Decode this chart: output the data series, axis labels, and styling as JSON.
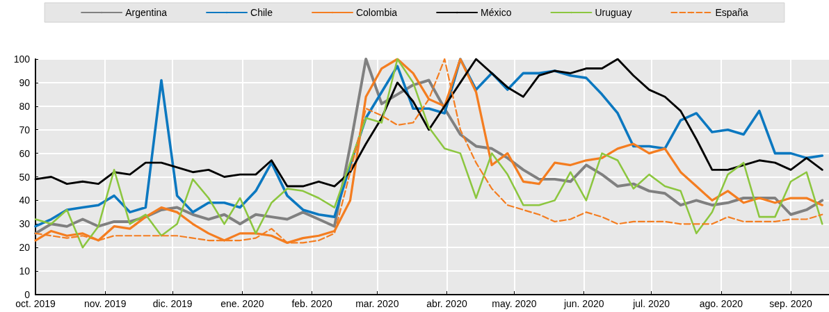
{
  "chart_data": {
    "type": "line",
    "x": [
      "2019-10-01",
      "2019-10-08",
      "2019-10-15",
      "2019-10-22",
      "2019-10-29",
      "2019-11-05",
      "2019-11-12",
      "2019-11-19",
      "2019-11-26",
      "2019-12-03",
      "2019-12-10",
      "2019-12-17",
      "2019-12-24",
      "2019-12-31",
      "2020-01-07",
      "2020-01-14",
      "2020-01-21",
      "2020-01-28",
      "2020-02-04",
      "2020-02-11",
      "2020-02-18",
      "2020-02-25",
      "2020-03-03",
      "2020-03-10",
      "2020-03-17",
      "2020-03-24",
      "2020-03-31",
      "2020-04-07",
      "2020-04-14",
      "2020-04-21",
      "2020-04-28",
      "2020-05-05",
      "2020-05-12",
      "2020-05-19",
      "2020-05-26",
      "2020-06-02",
      "2020-06-09",
      "2020-06-16",
      "2020-06-23",
      "2020-06-30",
      "2020-07-07",
      "2020-07-14",
      "2020-07-21",
      "2020-07-28",
      "2020-08-04",
      "2020-08-11",
      "2020-08-18",
      "2020-08-25",
      "2020-09-01",
      "2020-09-08",
      "2020-09-15"
    ],
    "series": [
      {
        "name": "Argentina",
        "color": "#808080",
        "values": [
          26,
          30,
          29,
          32,
          29,
          31,
          31,
          33,
          36,
          37,
          34,
          32,
          34,
          30,
          34,
          33,
          32,
          35,
          32,
          29,
          63,
          100,
          81,
          85,
          89,
          91,
          79,
          68,
          63,
          62,
          58,
          53,
          49,
          49,
          48,
          55,
          51,
          46,
          47,
          44,
          43,
          38,
          40,
          38,
          39,
          41,
          41,
          41,
          34,
          36,
          40
        ]
      },
      {
        "name": "Chile",
        "color": "#0c78c0",
        "values": [
          29,
          32,
          36,
          37,
          38,
          42,
          35,
          37,
          91,
          42,
          35,
          39,
          39,
          37,
          44,
          56,
          42,
          36,
          34,
          33,
          55,
          75,
          86,
          97,
          79,
          79,
          77,
          100,
          87,
          94,
          87,
          94,
          94,
          95,
          93,
          92,
          85,
          77,
          63,
          63,
          62,
          74,
          77,
          69,
          70,
          68,
          78,
          60,
          60,
          58,
          59
        ]
      },
      {
        "name": "Colombia",
        "color": "#f47d20",
        "values": [
          23,
          27,
          25,
          26,
          23,
          29,
          28,
          33,
          37,
          35,
          30,
          26,
          23,
          26,
          26,
          25,
          22,
          24,
          25,
          27,
          40,
          84,
          96,
          100,
          94,
          83,
          80,
          100,
          86,
          55,
          60,
          48,
          47,
          56,
          55,
          57,
          58,
          62,
          64,
          60,
          62,
          52,
          46,
          40,
          44,
          39,
          41,
          39,
          41,
          41,
          38
        ]
      },
      {
        "name": "México",
        "color": "#000000",
        "values": [
          49,
          50,
          47,
          48,
          47,
          52,
          51,
          56,
          56,
          54,
          52,
          53,
          50,
          51,
          51,
          57,
          46,
          46,
          48,
          46,
          52,
          64,
          75,
          90,
          82,
          70,
          80,
          90,
          100,
          94,
          88,
          84,
          93,
          95,
          94,
          96,
          96,
          100,
          93,
          87,
          84,
          78,
          66,
          53,
          53,
          55,
          57,
          56,
          53,
          58,
          53
        ]
      },
      {
        "name": "Uruguay",
        "color": "#8cc63f",
        "values": [
          32,
          30,
          36,
          20,
          29,
          53,
          30,
          34,
          25,
          30,
          49,
          41,
          30,
          41,
          26,
          39,
          45,
          44,
          41,
          37,
          56,
          75,
          73,
          100,
          90,
          71,
          62,
          60,
          41,
          60,
          51,
          38,
          38,
          40,
          52,
          40,
          60,
          57,
          45,
          51,
          46,
          44,
          26,
          35,
          51,
          56,
          33,
          33,
          48,
          52,
          30
        ]
      },
      {
        "name": "España",
        "color": "#f47d20",
        "line_style": "dashed",
        "values": [
          26,
          25,
          24,
          25,
          23,
          25,
          25,
          25,
          25,
          25,
          24,
          23,
          23,
          23,
          24,
          28,
          22,
          22,
          23,
          26,
          52,
          79,
          76,
          72,
          73,
          83,
          100,
          70,
          56,
          45,
          38,
          36,
          34,
          31,
          32,
          35,
          33,
          30,
          31,
          31,
          31,
          30,
          30,
          30,
          33,
          31,
          31,
          31,
          32,
          32,
          34
        ]
      }
    ],
    "xlim": [
      "2019-10-01",
      "2020-09-18"
    ],
    "xticks": [
      {
        "value": "2019-10-01",
        "label": "oct. 2019"
      },
      {
        "value": "2019-11-01",
        "label": "nov. 2019"
      },
      {
        "value": "2019-12-01",
        "label": "dic. 2019"
      },
      {
        "value": "2020-01-01",
        "label": "ene. 2020"
      },
      {
        "value": "2020-02-01",
        "label": "feb. 2020"
      },
      {
        "value": "2020-03-01",
        "label": "mar. 2020"
      },
      {
        "value": "2020-04-01",
        "label": "abr. 2020"
      },
      {
        "value": "2020-05-01",
        "label": "may. 2020"
      },
      {
        "value": "2020-06-01",
        "label": "jun. 2020"
      },
      {
        "value": "2020-07-01",
        "label": "jul. 2020"
      },
      {
        "value": "2020-08-01",
        "label": "ago. 2020"
      },
      {
        "value": "2020-09-01",
        "label": "sep. 2020"
      }
    ],
    "ylim": [
      0,
      100
    ],
    "yticks": [
      0,
      10,
      20,
      30,
      40,
      50,
      60,
      70,
      80,
      90,
      100
    ],
    "grid": true,
    "legend": "top",
    "line_style": "solid",
    "marker": "none"
  }
}
